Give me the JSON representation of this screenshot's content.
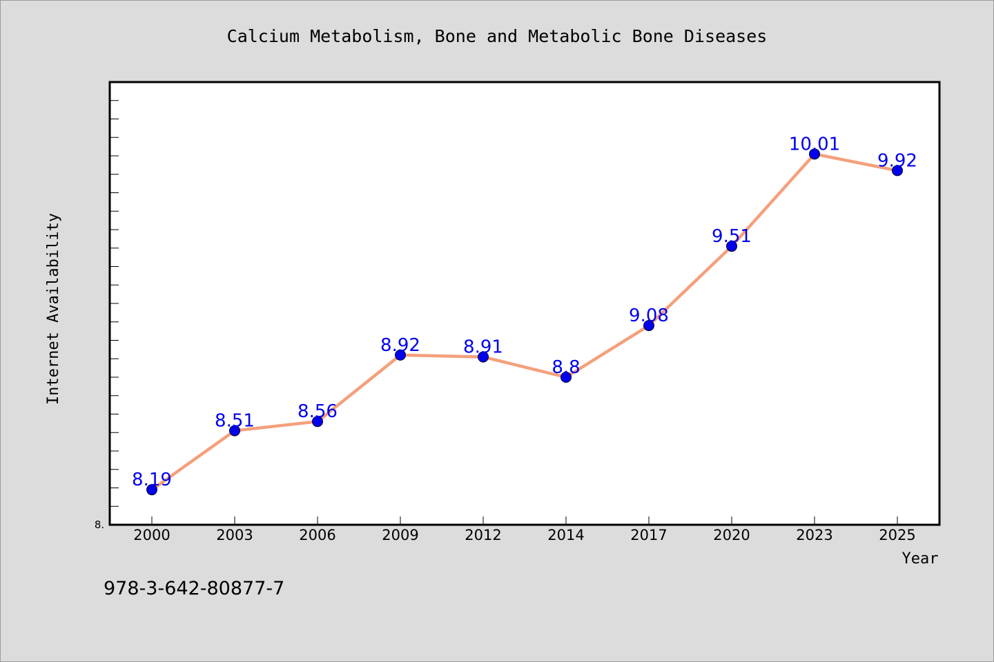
{
  "chart_data": {
    "type": "line",
    "title": "Calcium Metabolism, Bone and Metabolic Bone Diseases",
    "xlabel": "Year",
    "ylabel": "Internet Availability",
    "categories": [
      "2000",
      "2003",
      "2006",
      "2009",
      "2012",
      "2014",
      "2017",
      "2020",
      "2023",
      "2025"
    ],
    "series": [
      {
        "values": [
          8.19,
          8.51,
          8.56,
          8.92,
          8.91,
          8.8,
          9.08,
          9.51,
          10.01,
          9.92
        ],
        "data_labels": [
          "8.19",
          "8.51",
          "8.56",
          "8.92",
          "8.91",
          "8.8",
          "9.08",
          "9.51",
          "10.01",
          "9.92"
        ]
      }
    ],
    "ylim": [
      8.0,
      10.4
    ],
    "y_tick_label": "8.",
    "line_color": "#f4a07c",
    "marker_color": "#0000ee",
    "label_color": "#0000ee",
    "grid": false
  },
  "note": "978-3-642-80877-7"
}
